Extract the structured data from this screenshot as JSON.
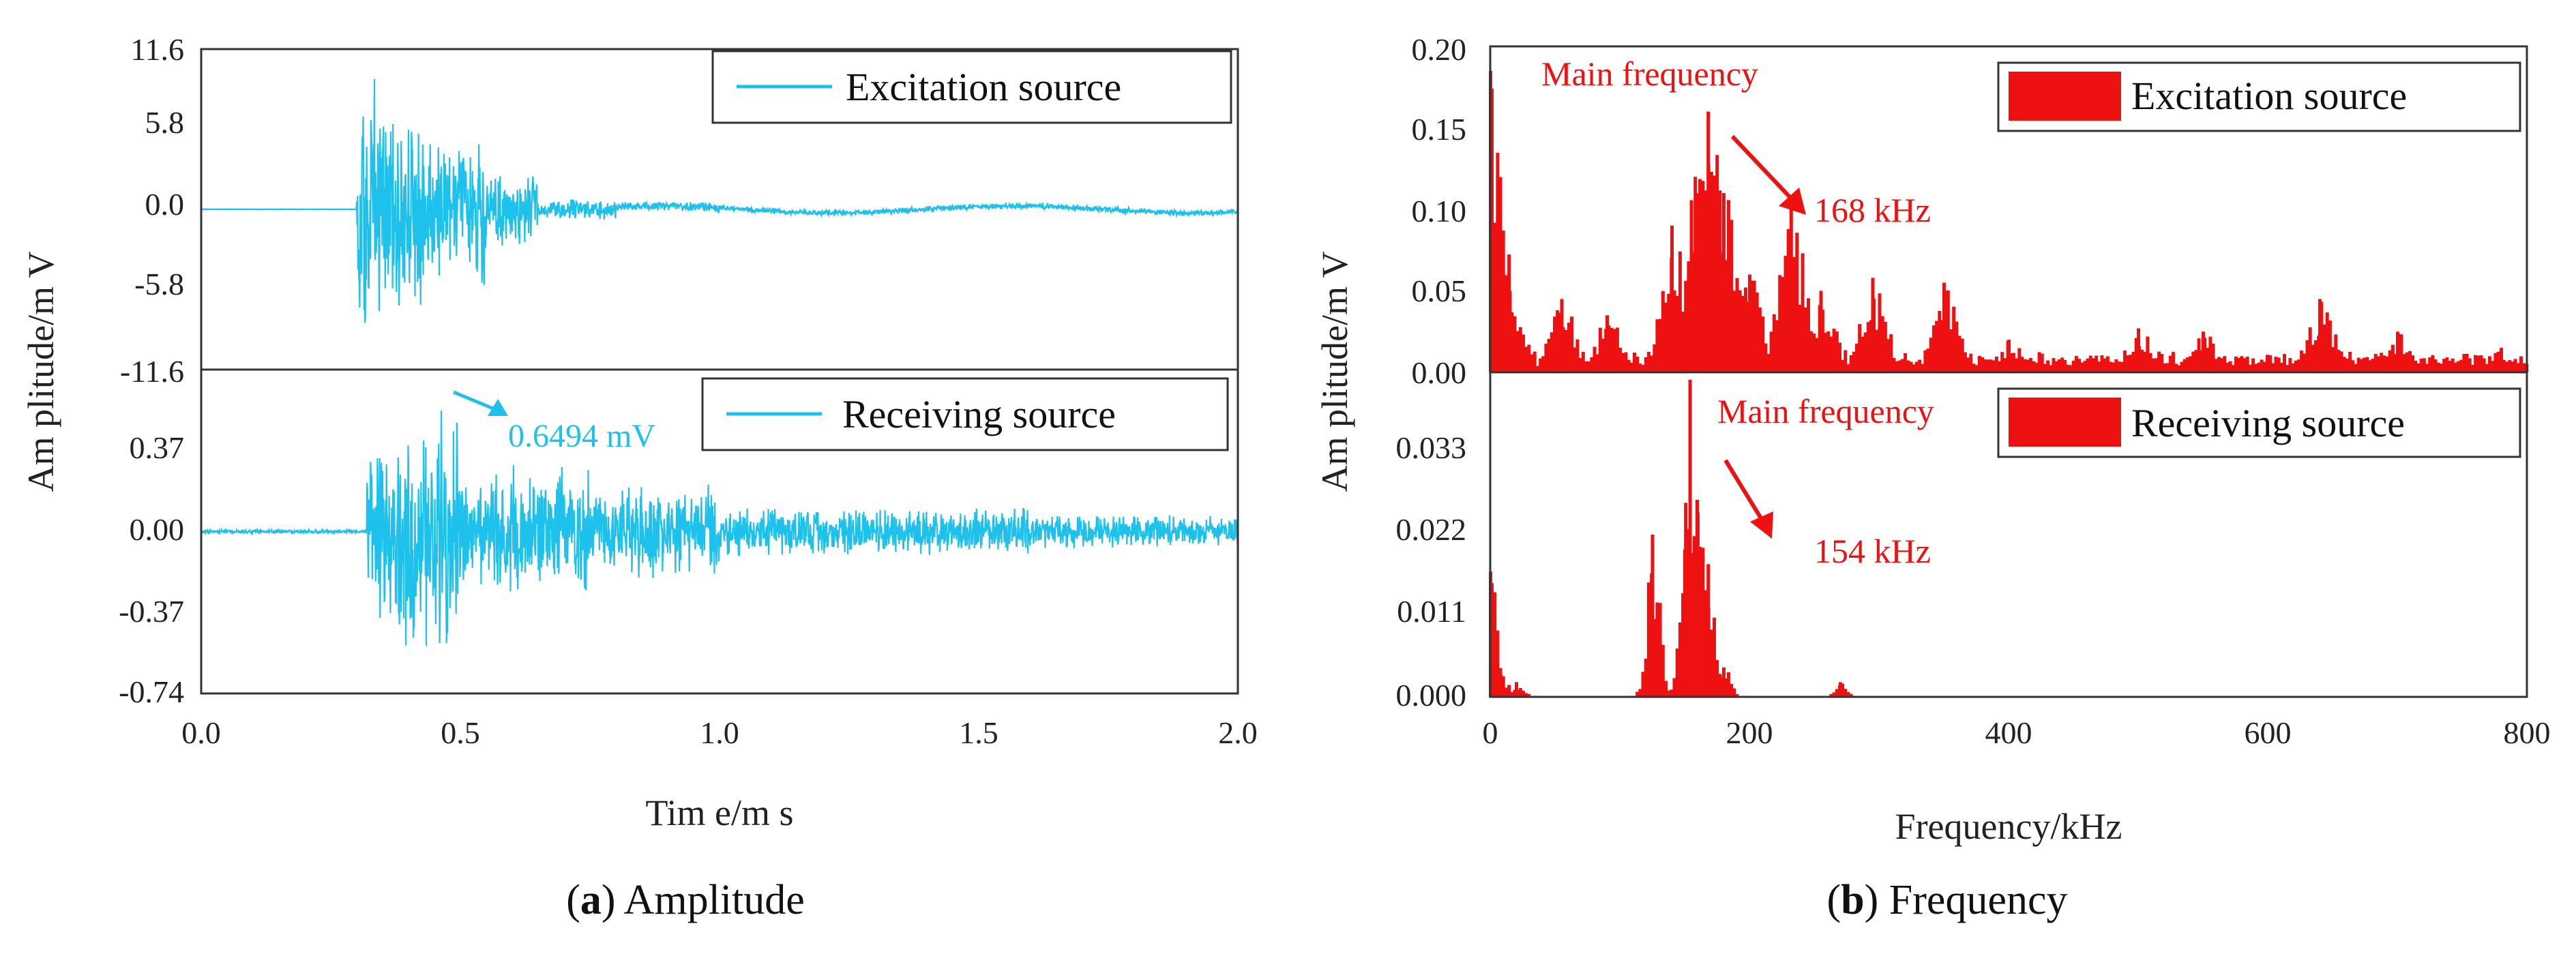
{
  "colors": {
    "amplitude": "#1ec0ec",
    "frequency": "#ee1111"
  },
  "captions": {
    "a_letter": "a",
    "a_text": "Amplitude",
    "b_letter": "b",
    "b_text": "Frequency"
  },
  "chart_data": [
    {
      "id": "a",
      "type": "line",
      "xlabel": "Tim e/m s",
      "ylabel": "Am plitude/m V",
      "xlim": [
        0,
        2.0
      ],
      "xticks": [
        "0.0",
        "0.5",
        "1.0",
        "1.5",
        "2.0"
      ],
      "panels": [
        {
          "series_name": "Excitation source",
          "ylim": [
            -11.6,
            11.6
          ],
          "yticks": [
            "11.6",
            "5.8",
            "0.0",
            "-5.8",
            "-11.6"
          ],
          "segments": [
            [
              0.0,
              0.3,
              0.02
            ],
            [
              0.3,
              0.345,
              10.5
            ],
            [
              0.345,
              0.43,
              8.5
            ],
            [
              0.43,
              0.55,
              5.5
            ],
            [
              0.55,
              0.65,
              2.8
            ],
            [
              0.65,
              0.8,
              0.8
            ],
            [
              0.8,
              1.0,
              0.4
            ],
            [
              1.0,
              2.0,
              0.25
            ]
          ],
          "annotation": null
        },
        {
          "series_name": "Receiving source",
          "ylim": [
            -0.74,
            0.74
          ],
          "yticks": [
            "0.37",
            "0.00",
            "-0.37",
            "-0.74"
          ],
          "segments": [
            [
              0.0,
              0.32,
              0.01
            ],
            [
              0.32,
              0.38,
              0.45
            ],
            [
              0.38,
              0.5,
              0.62
            ],
            [
              0.5,
              0.75,
              0.32
            ],
            [
              0.75,
              1.0,
              0.22
            ],
            [
              1.0,
              1.6,
              0.12
            ],
            [
              1.6,
              2.0,
              0.08
            ]
          ],
          "annotation": {
            "label": "0.6494 mV",
            "x": 0.47,
            "y": 0.6494
          }
        }
      ]
    },
    {
      "id": "b",
      "type": "bar",
      "xlabel": "Frequency/kHz",
      "ylabel": "Am plitude/m V",
      "xlim": [
        0,
        800
      ],
      "xticks": [
        "0",
        "200",
        "400",
        "600",
        "800"
      ],
      "panels": [
        {
          "series_name": "Excitation source",
          "ylim": [
            0,
            0.2
          ],
          "yticks": [
            "0.20",
            "0.15",
            "0.10",
            "0.05",
            "0.00"
          ],
          "peaks": [
            [
              0,
              0.185
            ],
            [
              5,
              0.09
            ],
            [
              15,
              0.05
            ],
            [
              55,
              0.045
            ],
            [
              90,
              0.035
            ],
            [
              140,
              0.09
            ],
            [
              158,
              0.12
            ],
            [
              168,
              0.16
            ],
            [
              180,
              0.11
            ],
            [
              200,
              0.06
            ],
            [
              232,
              0.103
            ],
            [
              255,
              0.05
            ],
            [
              295,
              0.058
            ],
            [
              350,
              0.055
            ],
            [
              400,
              0.02
            ],
            [
              500,
              0.027
            ],
            [
              550,
              0.025
            ],
            [
              640,
              0.045
            ],
            [
              700,
              0.025
            ],
            [
              780,
              0.015
            ]
          ],
          "annotations": {
            "main_label": "Main frequency",
            "value_label": "168 kHz"
          }
        },
        {
          "series_name": "Receiving source",
          "ylim": [
            0,
            0.044
          ],
          "yticks": [
            "0.033",
            "0.022",
            "0.011",
            "0.000"
          ],
          "peaks": [
            [
              0,
              0.017
            ],
            [
              8,
              0.003
            ],
            [
              20,
              0.002
            ],
            [
              125,
              0.022
            ],
            [
              150,
              0.02
            ],
            [
              154,
              0.043
            ],
            [
              160,
              0.025
            ],
            [
              168,
              0.018
            ],
            [
              180,
              0.004
            ],
            [
              270,
              0.002
            ]
          ],
          "annotations": {
            "main_label": "Main frequency",
            "value_label": "154 kHz"
          }
        }
      ]
    }
  ]
}
